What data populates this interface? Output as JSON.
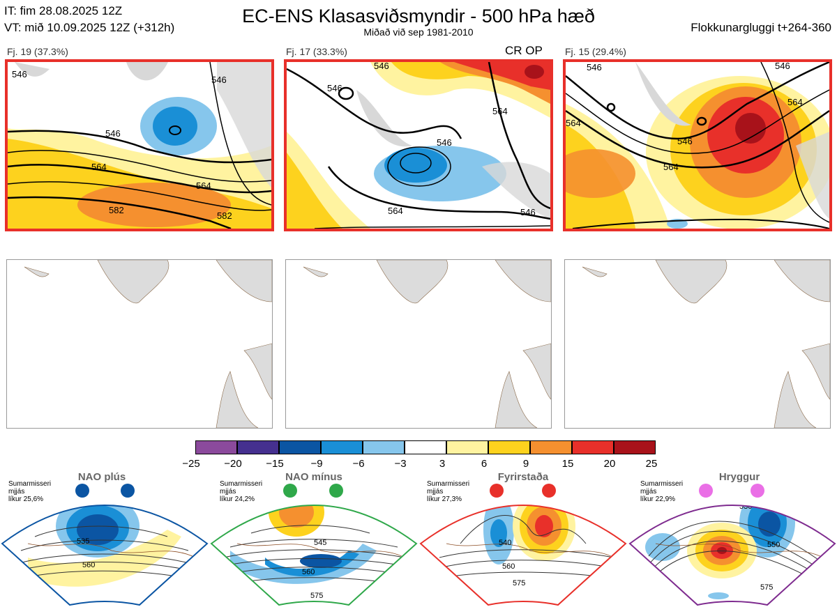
{
  "header": {
    "it_line": "IT: fim 28.08.2025 12Z",
    "vt_line": "VT: mið 10.09.2025 12Z  (+312h)",
    "title": "EC-ENS Klasasviðsmyndir - 500 hPa hæð",
    "subtitle": "Miðað við sep 1981-2010",
    "window": "Flokkunargluggi t+264-360"
  },
  "panels": [
    {
      "label": "Fj. 19 (37.3%)",
      "tag": "",
      "contours": [
        "546",
        "564",
        "564",
        "582",
        "582",
        "546",
        "546"
      ]
    },
    {
      "label": "Fj. 17 (33.3%)",
      "tag": "CR OP",
      "contours": [
        "546",
        "546",
        "564",
        "564",
        "546",
        "546"
      ]
    },
    {
      "label": "Fj. 15 (29.4%)",
      "tag": "",
      "contours": [
        "546",
        "564",
        "546",
        "564",
        "546",
        "564"
      ]
    }
  ],
  "colorbar": {
    "ticks": [
      "−25",
      "−20",
      "−15",
      "−9",
      "−6",
      "−3",
      "3",
      "6",
      "9",
      "15",
      "20",
      "25"
    ],
    "colors": [
      "#8b4a9c",
      "#45308f",
      "#0b55a3",
      "#1a8fd6",
      "#86c6ec",
      "#ffffff",
      "#fff3a0",
      "#fdd21e",
      "#f5902f",
      "#e8302a",
      "#a8121a"
    ]
  },
  "regimes": [
    {
      "name": "NAO plús",
      "season": "Sumarmisseri",
      "prob_label": "mjjás",
      "prob": "líkur 25,6%",
      "color": "#0b55a3",
      "contours": [
        "535",
        "560"
      ]
    },
    {
      "name": "NAO mínus",
      "season": "Sumarmisseri",
      "prob_label": "mjjás",
      "prob": "líkur 24,2%",
      "color": "#2fa84a",
      "contours": [
        "545",
        "560",
        "575"
      ]
    },
    {
      "name": "Fyrirstaða",
      "season": "Sumarmisseri",
      "prob_label": "mjjás",
      "prob": "líkur 27,3%",
      "color": "#e8302a",
      "contours": [
        "540",
        "560",
        "575"
      ]
    },
    {
      "name": "Hryggur",
      "season": "Sumarmisseri",
      "prob_label": "mjjás",
      "prob": "líkur 22,9%",
      "color": "#7e2b8f",
      "contours": [
        "530",
        "550",
        "575"
      ]
    }
  ]
}
